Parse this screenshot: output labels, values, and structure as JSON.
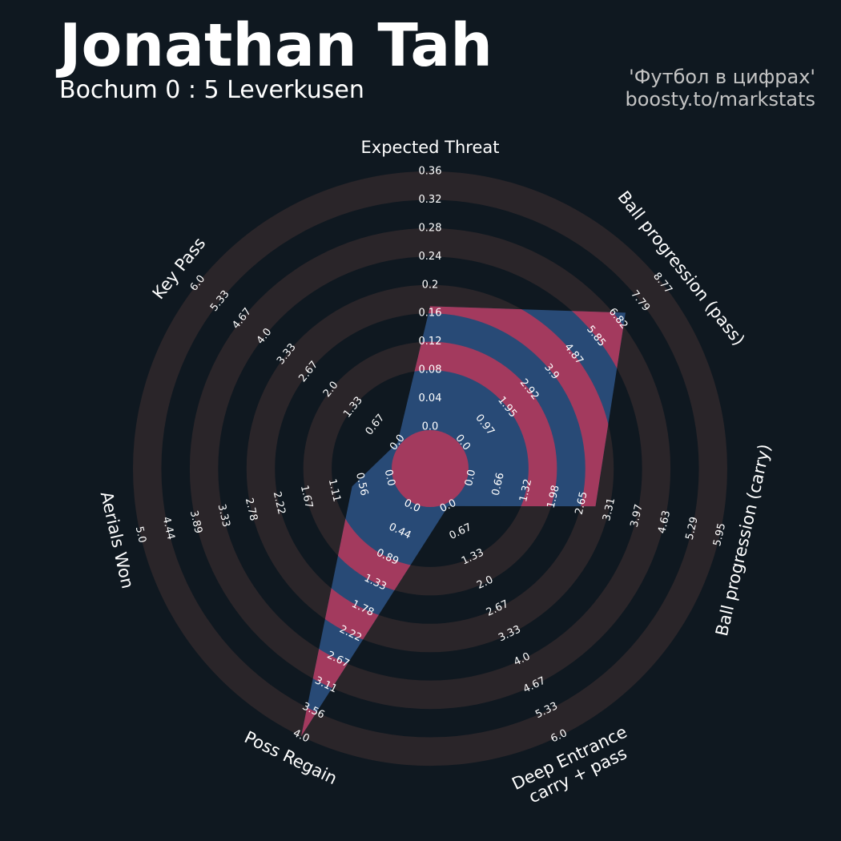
{
  "chart_data": {
    "type": "radar",
    "title": "Jonathan Tah",
    "subtitle": "Bochum 0 : 5 Leverkusen",
    "credits": [
      "'Футбол в цифрах'",
      "boosty.to/markstats"
    ],
    "params": [
      [
        "Expected Threat"
      ],
      [
        "Ball progression (pass)"
      ],
      [
        "Ball progression (carry)"
      ],
      [
        "Deep Entrance",
        "carry + pass"
      ],
      [
        "Poss Regain"
      ],
      [
        "Aerials Won"
      ],
      [
        "Key Pass"
      ]
    ],
    "values": [
      0.17,
      7.15,
      2.98,
      0,
      4.0,
      0.75,
      0
    ],
    "lims": [
      [
        0,
        0.36
      ],
      [
        0,
        8.77
      ],
      [
        0,
        5.95
      ],
      [
        0,
        6
      ],
      [
        0,
        4
      ],
      [
        0,
        5
      ],
      [
        0,
        6
      ]
    ],
    "ticks": [
      [
        {
          "value": 0,
          "label": "0.0"
        },
        0.04,
        0.08,
        0.12,
        0.16,
        {
          "value": 0.2,
          "label": "0.2"
        },
        0.24,
        0.28,
        0.32,
        0.36
      ],
      [
        {
          "value": 0,
          "label": "0.0"
        },
        0.97,
        1.95,
        2.92,
        {
          "value": 3.9,
          "label": "3.9"
        },
        4.87,
        5.85,
        6.82,
        7.79,
        8.77
      ],
      [
        {
          "value": 0,
          "label": "0.0"
        },
        0.66,
        1.32,
        1.98,
        2.65,
        3.31,
        3.97,
        4.63,
        5.29,
        5.95
      ],
      [
        {
          "value": 0,
          "label": "0.0"
        },
        0.67,
        1.33,
        {
          "value": 2,
          "label": "2.0"
        },
        2.67,
        3.33,
        {
          "value": 4,
          "label": "4.0"
        },
        4.67,
        5.33,
        {
          "value": 6,
          "label": "6.0"
        }
      ],
      [
        {
          "value": 0,
          "label": "0.0"
        },
        0.44,
        0.89,
        1.33,
        1.78,
        2.22,
        2.67,
        3.11,
        3.56,
        {
          "value": 4,
          "label": "4.0"
        }
      ],
      [
        {
          "value": 0,
          "label": "0.0"
        },
        0.56,
        1.11,
        1.67,
        2.22,
        2.78,
        3.33,
        3.89,
        4.44,
        {
          "value": 5,
          "label": "5.0"
        }
      ],
      [
        {
          "value": 0,
          "label": "0.0"
        },
        0.67,
        1.33,
        {
          "value": 2,
          "label": "2.0"
        },
        2.67,
        3.33,
        {
          "value": 4,
          "label": "4.0"
        },
        4.67,
        5.33,
        {
          "value": 6,
          "label": "6.0"
        }
      ]
    ],
    "colors": {
      "face": "#284a76",
      "alt": "#a33a5e",
      "rings": "#2a2529"
    }
  }
}
